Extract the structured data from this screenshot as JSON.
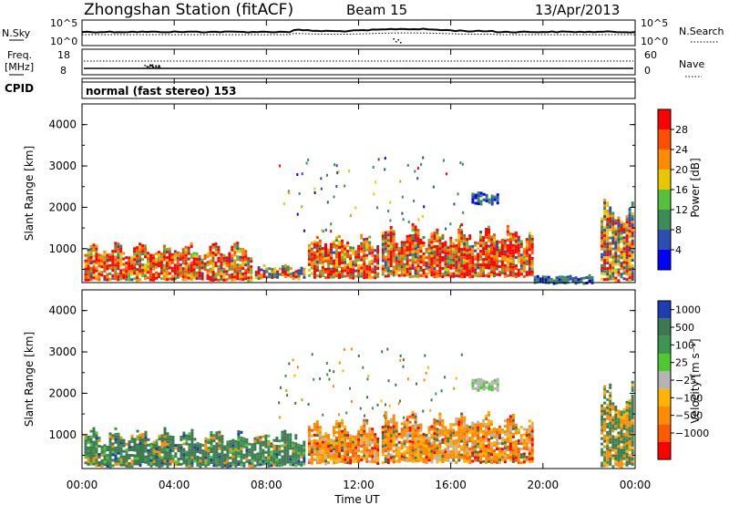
{
  "header": {
    "title": "Zhongshan Station (fitACF)",
    "beam": "Beam 15",
    "date": "13/Apr/2013"
  },
  "noise_panel": {
    "left_label": "N.Sky",
    "right_label": "N.Search",
    "left_ticks": [
      "10^5",
      "10^0"
    ],
    "right_ticks": [
      "10^5",
      "10^0"
    ]
  },
  "freq_panel": {
    "left_label_line1": "Freq.",
    "left_label_line2": "[MHz]",
    "right_label": "Nave",
    "left_ticks": [
      "18",
      "8"
    ],
    "right_ticks": [
      "60",
      "0"
    ]
  },
  "cpid": {
    "label": "CPID",
    "text": "normal (fast stereo) 153"
  },
  "x_axis": {
    "label": "Time UT",
    "ticks": [
      "00:00",
      "04:00",
      "08:00",
      "12:00",
      "16:00",
      "20:00",
      "00:00"
    ]
  },
  "colors": {
    "power": [
      "#0000ff",
      "#2a4fb0",
      "#3c8c5a",
      "#55c03c",
      "#e6c800",
      "#ff8c00",
      "#ff5000",
      "#ff0000"
    ],
    "velocity": [
      "#1e3cb4",
      "#3c7850",
      "#3c9650",
      "#50c832",
      "#b4b4b4",
      "#ffb400",
      "#ff8c00",
      "#ff5a00",
      "#ff0000"
    ]
  },
  "chart_data": [
    {
      "type": "heatmap",
      "name": "power",
      "ylabel": "Slant Range [km]",
      "yticks": [
        1000,
        2000,
        3000,
        4000
      ],
      "ylim": [
        180,
        4500
      ],
      "xlim_hours": [
        0,
        24
      ],
      "colorbar": {
        "label": "Power [dB]",
        "ticks": [
          "4",
          "8",
          "12",
          "16",
          "20",
          "24",
          "28"
        ],
        "range": [
          0,
          32
        ]
      },
      "regions": [
        {
          "t0": 0.1,
          "t1": 7.4,
          "r0": 260,
          "r1": 1100,
          "level": "strong"
        },
        {
          "t0": 7.5,
          "t1": 9.7,
          "r0": 300,
          "r1": 600,
          "level": "mid"
        },
        {
          "t0": 9.8,
          "t1": 12.9,
          "r0": 320,
          "r1": 1300,
          "level": "strong"
        },
        {
          "t0": 13.0,
          "t1": 19.6,
          "r0": 350,
          "r1": 1500,
          "level": "strong"
        },
        {
          "t0": 16.9,
          "t1": 18.1,
          "r0": 2100,
          "r1": 2380,
          "level": "weak"
        },
        {
          "t0": 19.6,
          "t1": 22.2,
          "r0": 180,
          "r1": 360,
          "level": "weak"
        },
        {
          "t0": 22.5,
          "t1": 23.95,
          "r0": 250,
          "r1": 2100,
          "level": "mid"
        }
      ]
    },
    {
      "type": "heatmap",
      "name": "velocity",
      "ylabel": "Slant Range [km]",
      "yticks": [
        1000,
        2000,
        3000,
        4000
      ],
      "ylim": [
        180,
        4500
      ],
      "xlim_hours": [
        0,
        24
      ],
      "colorbar": {
        "label": "Velocity [m s⁻¹]",
        "ticks": [
          "1000",
          "500",
          "100",
          "25",
          "−25",
          "−100",
          "−500",
          "−1000"
        ]
      },
      "regions": [
        {
          "t0": 0.1,
          "t1": 9.7,
          "r0": 260,
          "r1": 1100,
          "level": "positive"
        },
        {
          "t0": 9.8,
          "t1": 12.9,
          "r0": 320,
          "r1": 1300,
          "level": "negative"
        },
        {
          "t0": 13.0,
          "t1": 19.6,
          "r0": 350,
          "r1": 1500,
          "level": "negative"
        },
        {
          "t0": 16.9,
          "t1": 18.1,
          "r0": 2100,
          "r1": 2380,
          "level": "neutral"
        },
        {
          "t0": 22.5,
          "t1": 23.95,
          "r0": 250,
          "r1": 2100,
          "level": "mixed"
        }
      ]
    }
  ]
}
